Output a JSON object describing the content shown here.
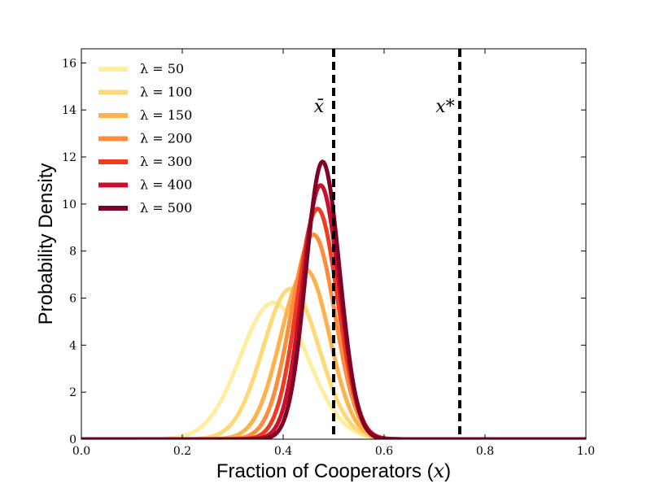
{
  "chart_data": {
    "type": "line",
    "xlabel_text": "Fraction of Cooperators (",
    "xlabel_var": "x",
    "xlabel_close": ")",
    "ylabel": "Probability Density",
    "xlim": [
      0.0,
      1.0
    ],
    "ylim": [
      0,
      16.6
    ],
    "xticks": [
      "0.0",
      "0.2",
      "0.4",
      "0.6",
      "0.8",
      "1.0"
    ],
    "xtick_values": [
      0.0,
      0.2,
      0.4,
      0.6,
      0.8,
      1.0
    ],
    "yticks": [
      "0",
      "2",
      "4",
      "6",
      "8",
      "10",
      "12",
      "14",
      "16"
    ],
    "ytick_values": [
      0,
      2,
      4,
      6,
      8,
      10,
      12,
      14,
      16
    ],
    "grid": false,
    "legend_position": "top-left",
    "series": [
      {
        "name": "λ = 50",
        "color": "#ffeda0",
        "mean": 0.38,
        "sd_left": 0.065,
        "sd_right": 0.068,
        "peak": 5.8
      },
      {
        "name": "λ = 100",
        "color": "#fed976",
        "mean": 0.415,
        "sd_left": 0.055,
        "sd_right": 0.056,
        "peak": 6.4
      },
      {
        "name": "λ = 150",
        "color": "#feb24c",
        "mean": 0.445,
        "sd_left": 0.05,
        "sd_right": 0.047,
        "peak": 7.2
      },
      {
        "name": "λ = 200",
        "color": "#fd8d3c",
        "mean": 0.46,
        "sd_left": 0.045,
        "sd_right": 0.043,
        "peak": 8.7
      },
      {
        "name": "λ = 300",
        "color": "#f03b20",
        "mean": 0.468,
        "sd_left": 0.04,
        "sd_right": 0.04,
        "peak": 9.8
      },
      {
        "name": "λ = 400",
        "color": "#c8102e",
        "mean": 0.474,
        "sd_left": 0.036,
        "sd_right": 0.037,
        "peak": 10.8
      },
      {
        "name": "λ = 500",
        "color": "#800026",
        "mean": 0.478,
        "sd_left": 0.033,
        "sd_right": 0.034,
        "peak": 11.8
      }
    ],
    "reference_lines": [
      {
        "label": "x̄",
        "x": 0.5,
        "style": "dashed",
        "color": "#000000"
      },
      {
        "label": "x*",
        "x": 0.75,
        "style": "dashed",
        "color": "#000000"
      }
    ]
  }
}
